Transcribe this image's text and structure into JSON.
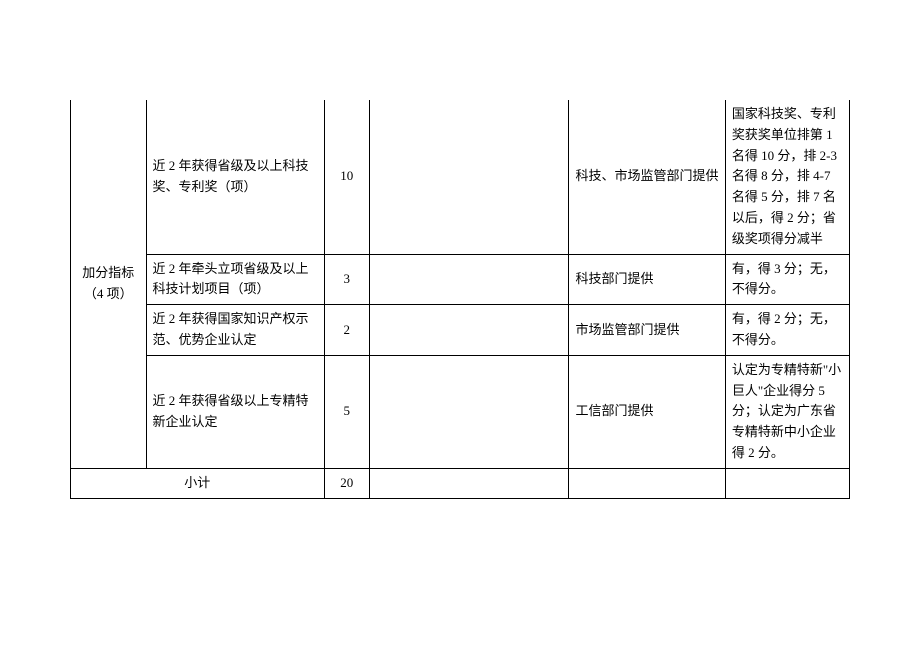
{
  "table": {
    "category_label": "加分指标（4 项）",
    "rows": [
      {
        "desc": "近 2 年获得省级及以上科技奖、专利奖（项）",
        "score": "10",
        "source": "科技、市场监管部门提供",
        "remark": "国家科技奖、专利奖获奖单位排第 1 名得 10 分，排 2-3 名得 8 分，排 4-7 名得 5 分，排 7 名以后，得 2 分；省级奖项得分减半"
      },
      {
        "desc": "近 2 年牵头立项省级及以上科技计划项目（项）",
        "score": "3",
        "source": "科技部门提供",
        "remark": "有，得 3 分；无，不得分。"
      },
      {
        "desc": "近 2 年获得国家知识产权示范、优势企业认定",
        "score": "2",
        "source": "市场监管部门提供",
        "remark": "有，得 2 分；无，不得分。"
      },
      {
        "desc": "近 2 年获得省级以上专精特新企业认定",
        "score": "5",
        "source": "工信部门提供",
        "remark": "认定为专精特新\"小巨人\"企业得分 5 分；认定为广东省专精特新中小企业得 2 分。"
      }
    ],
    "subtotal_label": "小计",
    "subtotal_score": "20"
  }
}
